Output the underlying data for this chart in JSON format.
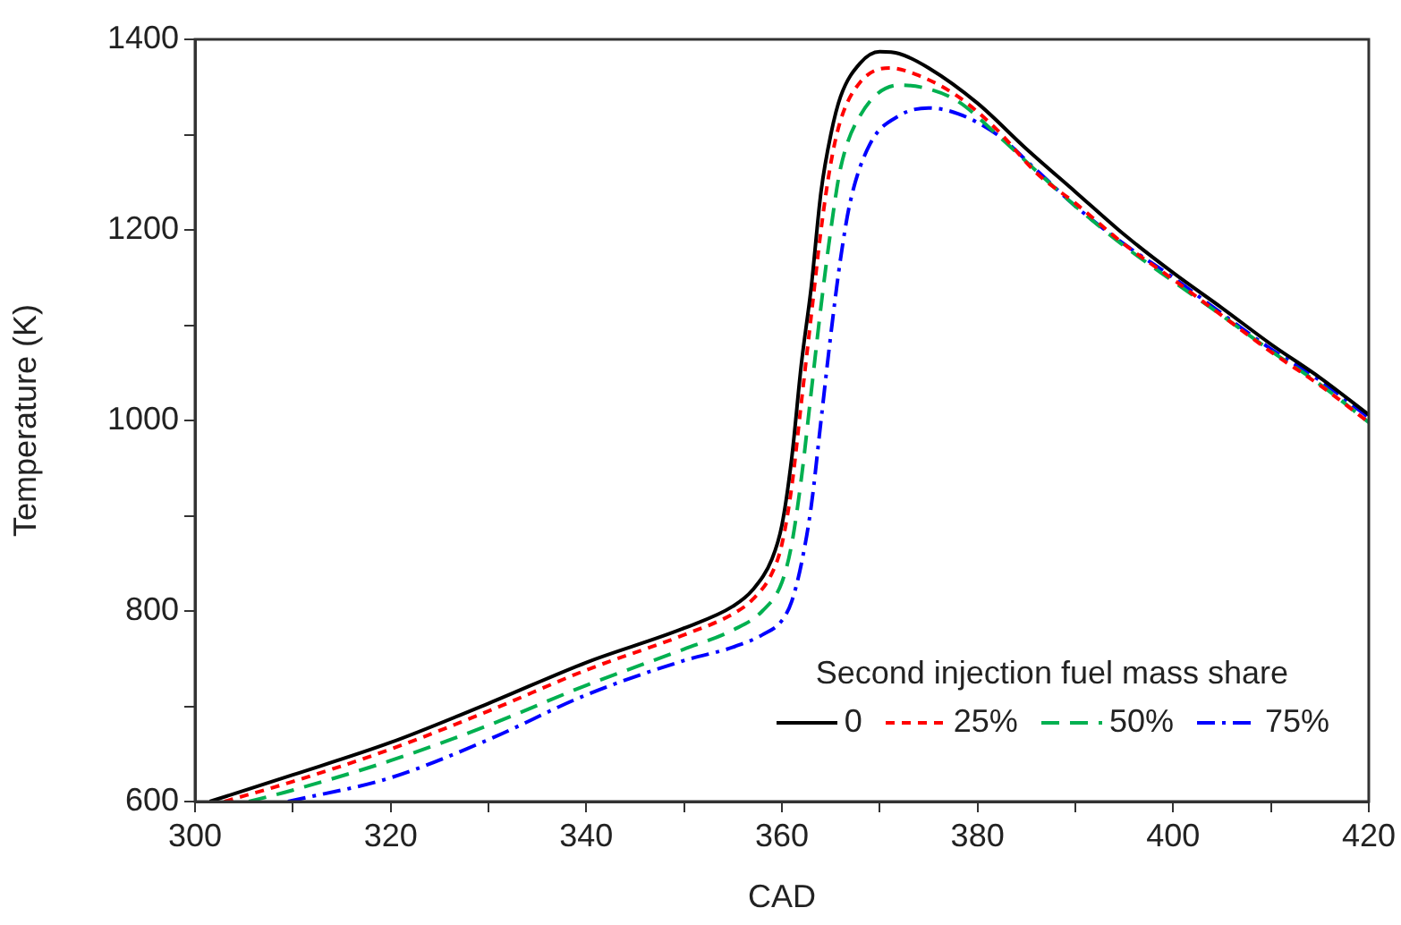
{
  "chart_data": {
    "type": "line",
    "xlabel": "CAD",
    "ylabel": "Temperature (K)",
    "legend_title": "Second injection fuel mass share",
    "legend": "bottom right",
    "grid": false,
    "marker": "none",
    "xlim": [
      300,
      420
    ],
    "xticks": [
      300,
      {
        "value": 310,
        "label": null
      },
      320,
      {
        "value": 330,
        "label": null
      },
      340,
      {
        "value": 350,
        "label": null
      },
      360,
      {
        "value": 370,
        "label": null
      },
      380,
      {
        "value": 390,
        "label": null
      },
      400,
      {
        "value": 410,
        "label": null
      },
      420
    ],
    "ylim": [
      600,
      1400
    ],
    "yticks": [
      600,
      {
        "value": 700,
        "label": null
      },
      800,
      {
        "value": 900,
        "label": null
      },
      1000,
      {
        "value": 1100,
        "label": null
      },
      1200,
      {
        "value": 1300,
        "label": null
      },
      1400
    ],
    "series": [
      {
        "name": "0",
        "color": "#000000",
        "line_style": "solid",
        "x": [
          301.5,
          310,
          320,
          330,
          340,
          350,
          355,
          357,
          359,
          360,
          361,
          362,
          363,
          364,
          365,
          366,
          368,
          370,
          372,
          375,
          380,
          385,
          390,
          395,
          400,
          405,
          410,
          415,
          420
        ],
        "values": [
          600,
          628,
          662,
          703,
          746,
          782,
          805,
          822,
          855,
          890,
          960,
          1060,
          1140,
          1240,
          1300,
          1340,
          1375,
          1387,
          1385,
          1370,
          1333,
          1285,
          1240,
          1195,
          1155,
          1118,
          1080,
          1045,
          1006
        ]
      },
      {
        "name": "25%",
        "color": "#ff0000",
        "line_style": "dashed",
        "x": [
          303,
          310,
          320,
          330,
          340,
          350,
          355,
          357,
          359,
          360,
          361,
          362,
          363,
          364,
          365,
          366,
          368,
          371,
          374,
          378,
          382,
          386,
          390,
          395,
          400,
          405,
          410,
          415,
          420
        ],
        "values": [
          600,
          621,
          655,
          695,
          738,
          775,
          797,
          812,
          840,
          870,
          930,
          1020,
          1110,
          1200,
          1270,
          1315,
          1355,
          1370,
          1362,
          1340,
          1305,
          1260,
          1228,
          1185,
          1148,
          1110,
          1072,
          1037,
          998
        ]
      },
      {
        "name": "50%",
        "color": "#00b050",
        "line_style": "dashed",
        "x": [
          305.5,
          310,
          320,
          330,
          340,
          350,
          355,
          358,
          360,
          361,
          362,
          363,
          364,
          365,
          366,
          368,
          372,
          375,
          378,
          382,
          386,
          390,
          395,
          400,
          405,
          410,
          415,
          420
        ],
        "values": [
          600,
          612,
          643,
          680,
          722,
          760,
          780,
          800,
          830,
          870,
          940,
          1030,
          1120,
          1200,
          1265,
          1320,
          1352,
          1348,
          1335,
          1300,
          1262,
          1225,
          1183,
          1146,
          1110,
          1073,
          1038,
          998
        ]
      },
      {
        "name": "75%",
        "color": "#0000ff",
        "line_style": "dashed",
        "x": [
          309.5,
          320,
          330,
          340,
          350,
          355,
          358,
          360,
          361,
          362,
          363,
          364,
          365,
          366,
          367,
          369,
          372,
          375,
          378,
          382,
          386,
          390,
          395,
          400,
          405,
          410,
          415,
          420
        ],
        "values": [
          600,
          625,
          665,
          712,
          748,
          762,
          775,
          790,
          810,
          850,
          910,
          1000,
          1090,
          1170,
          1230,
          1290,
          1320,
          1328,
          1322,
          1300,
          1263,
          1225,
          1185,
          1150,
          1112,
          1075,
          1042,
          1003
        ]
      }
    ]
  }
}
